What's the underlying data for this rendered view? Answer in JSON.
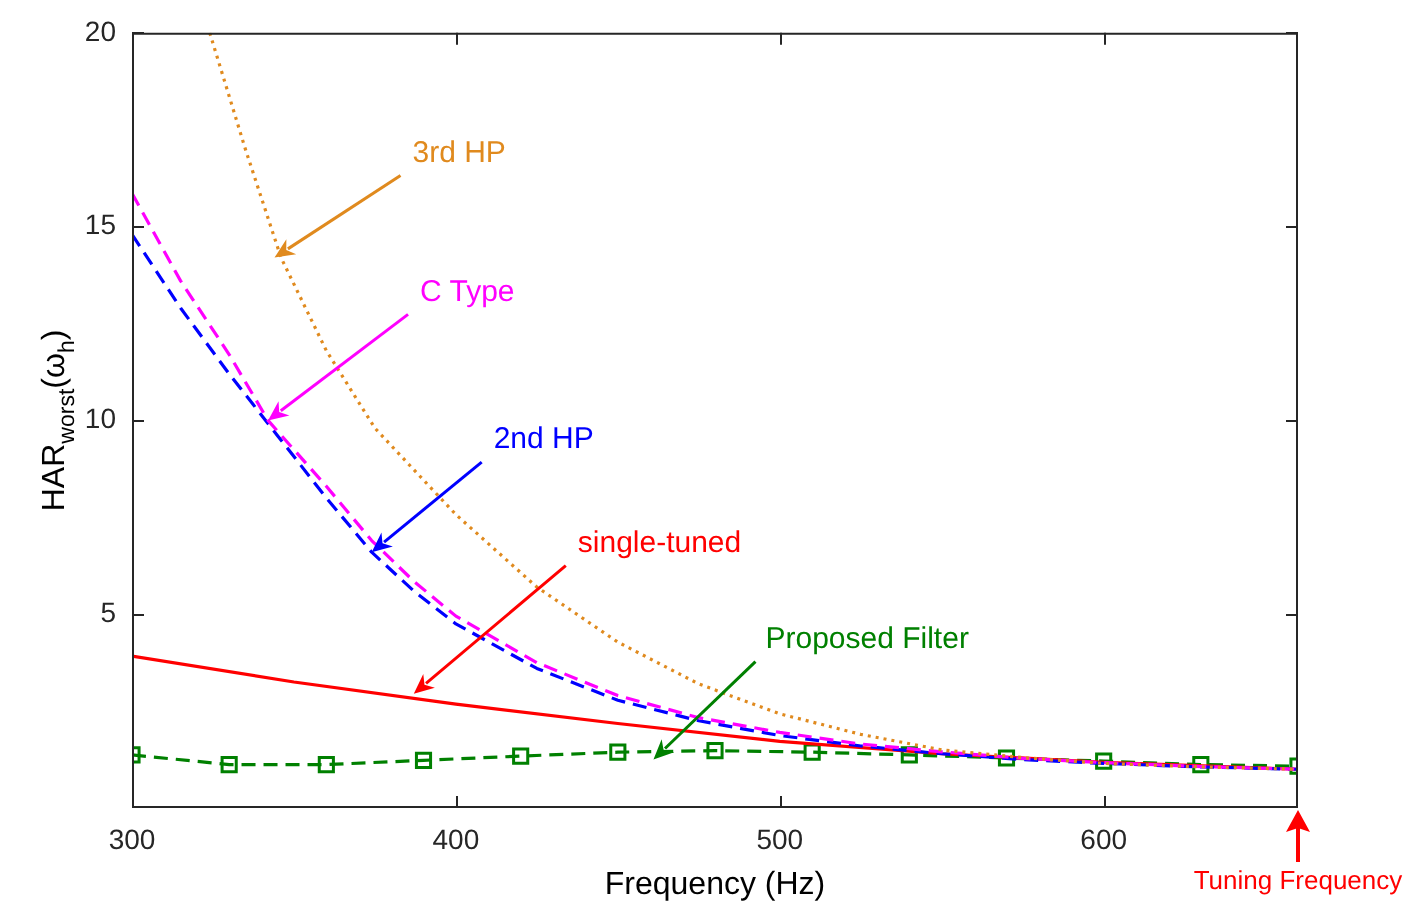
{
  "chart_data": {
    "type": "line",
    "xlabel": "Frequency (Hz)",
    "ylabel": "HAR$_{worst}$(ω$_{h}$)",
    "xlim": [
      300,
      660
    ],
    "xticks": [
      300,
      400,
      500,
      600
    ],
    "ylim": [
      0,
      20
    ],
    "yticks": [
      5,
      10,
      15,
      20
    ],
    "grid": false,
    "legend": false,
    "series": [
      {
        "color": "#e08a1e",
        "line_style": "dotted",
        "marker": "none",
        "x": [
          324,
          335,
          346,
          360,
          375,
          400,
          425,
          450,
          475,
          500,
          525,
          550,
          575,
          600,
          630,
          660
        ],
        "values": [
          20,
          17.0,
          14.2,
          11.8,
          9.8,
          7.57,
          5.7,
          4.28,
          3.2,
          2.43,
          1.9,
          1.5,
          1.3,
          1.15,
          1.06,
          1.0
        ]
      },
      {
        "color": "#ff00ff",
        "line_style": "dashed",
        "marker": "none",
        "x": [
          300,
          315,
          330,
          342,
          360,
          374,
          387,
          400,
          425,
          450,
          475,
          500,
          525,
          550,
          575,
          600,
          630,
          660
        ],
        "values": [
          15.86,
          13.6,
          11.7,
          10.0,
          8.3,
          6.9,
          5.85,
          4.95,
          3.75,
          2.9,
          2.33,
          1.95,
          1.65,
          1.45,
          1.28,
          1.17,
          1.07,
          1.0
        ]
      },
      {
        "color": "#0000ff",
        "line_style": "dashed",
        "marker": "none",
        "x": [
          300,
          315,
          330,
          345,
          360,
          374,
          387,
          400,
          425,
          450,
          475,
          500,
          525,
          550,
          575,
          600,
          630,
          660
        ],
        "values": [
          14.8,
          12.9,
          11.2,
          9.6,
          8.0,
          6.6,
          5.6,
          4.75,
          3.6,
          2.78,
          2.25,
          1.87,
          1.6,
          1.4,
          1.25,
          1.15,
          1.06,
          1.0
        ]
      },
      {
        "color": "#ff0000",
        "line_style": "solid",
        "marker": "none",
        "x": [
          300,
          350,
          400,
          450,
          500,
          550,
          600,
          660
        ],
        "values": [
          3.92,
          3.25,
          2.68,
          2.18,
          1.72,
          1.4,
          1.18,
          1.0
        ]
      },
      {
        "color": "#008000",
        "line_style": "dashed",
        "marker": "square",
        "x": [
          300,
          330,
          360,
          390,
          420,
          450,
          480,
          510,
          540,
          570,
          600,
          630,
          660
        ],
        "values": [
          1.37,
          1.12,
          1.12,
          1.23,
          1.34,
          1.44,
          1.48,
          1.44,
          1.37,
          1.29,
          1.21,
          1.12,
          1.08
        ]
      }
    ],
    "annotations": [
      {
        "text": "3rd HP",
        "x": 344,
        "y": 14.2
      },
      {
        "text": "C Type",
        "x": 342,
        "y": 10.0
      },
      {
        "text": "2nd HP",
        "x": 374,
        "y": 6.6
      },
      {
        "text": "single-tuned",
        "x": 387,
        "y": 2.95
      },
      {
        "text": "Proposed Filter",
        "x": 461,
        "y": 1.25
      },
      "Tuning Frequency"
    ]
  }
}
